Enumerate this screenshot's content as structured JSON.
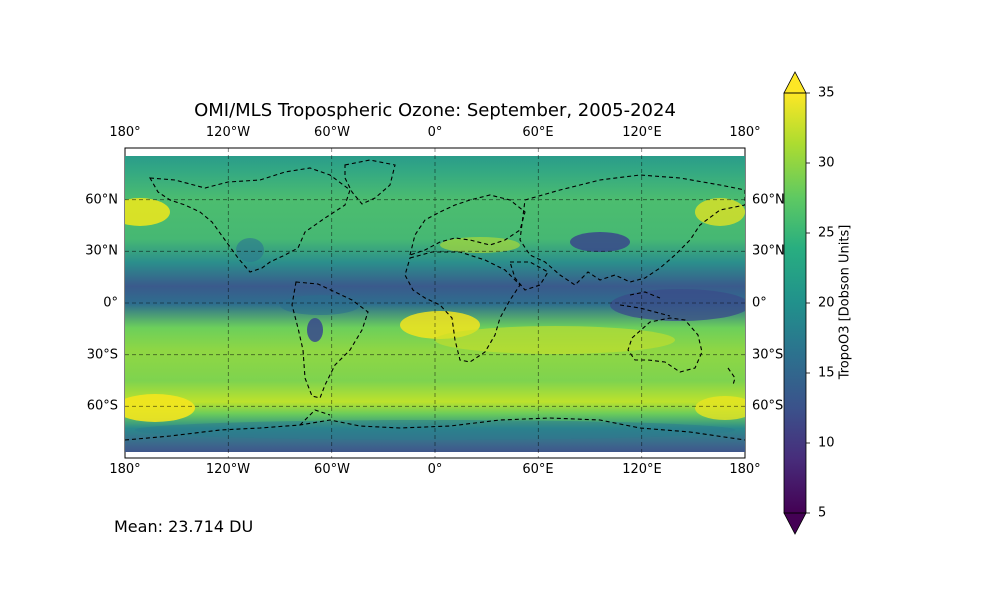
{
  "title": "OMI/MLS Tropospheric Ozone: September, 2005-2024",
  "mean_text": "Mean: 23.714 DU",
  "lon_ticks": [
    "180°",
    "120°W",
    "60°W",
    "0°",
    "60°E",
    "120°E",
    "180°"
  ],
  "lat_ticks": [
    "60°N",
    "30°N",
    "0°",
    "30°S",
    "60°S"
  ],
  "colorbar": {
    "label": "TropoO3 [Dobson Units]",
    "ticks": [
      "5",
      "10",
      "15",
      "20",
      "25",
      "30",
      "35"
    ],
    "min": 5,
    "max": 35,
    "extend": "both",
    "colormap": "viridis"
  },
  "map": {
    "projection": "PlateCarree",
    "gridlines": "dashed",
    "coastlines": "dashed black",
    "lon_range": [
      -180,
      180
    ],
    "lat_range": [
      -90,
      90
    ],
    "palette": [
      "#440154",
      "#3b528b",
      "#21918c",
      "#5ec962",
      "#fde725"
    ]
  }
}
